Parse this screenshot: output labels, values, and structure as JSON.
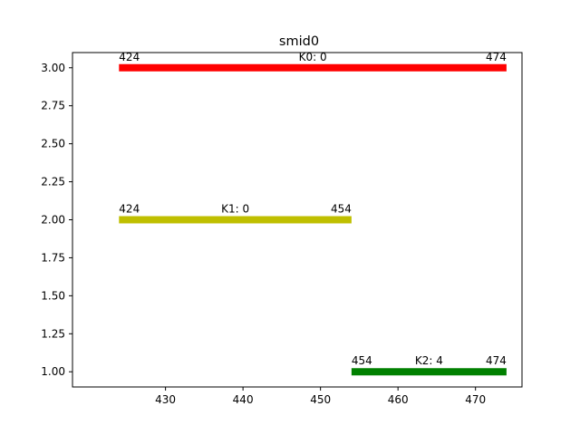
{
  "chart_data": {
    "type": "bar",
    "orientation": "horizontal-segments",
    "title": "smid0",
    "xlabel": "",
    "ylabel": "",
    "xlim": [
      418,
      476
    ],
    "ylim": [
      0.9,
      3.1
    ],
    "xticks": [
      430,
      440,
      450,
      460,
      470
    ],
    "xtick_labels": [
      "430",
      "440",
      "450",
      "460",
      "470"
    ],
    "yticks": [
      1.0,
      1.25,
      1.5,
      1.75,
      2.0,
      2.25,
      2.5,
      2.75,
      3.0
    ],
    "ytick_labels": [
      "1.00",
      "1.25",
      "1.50",
      "1.75",
      "2.00",
      "2.25",
      "2.50",
      "2.75",
      "3.00"
    ],
    "grid": false,
    "legend": "none",
    "segments": [
      {
        "label": "K0: 0",
        "y": 3,
        "start": 424,
        "end": 474,
        "start_label": "424",
        "end_label": "474",
        "color": "#ff0000"
      },
      {
        "label": "K1: 0",
        "y": 2,
        "start": 424,
        "end": 454,
        "start_label": "424",
        "end_label": "454",
        "color": "#bfbf00"
      },
      {
        "label": "K2: 4",
        "y": 1,
        "start": 454,
        "end": 474,
        "start_label": "454",
        "end_label": "474",
        "color": "#008000"
      }
    ]
  }
}
